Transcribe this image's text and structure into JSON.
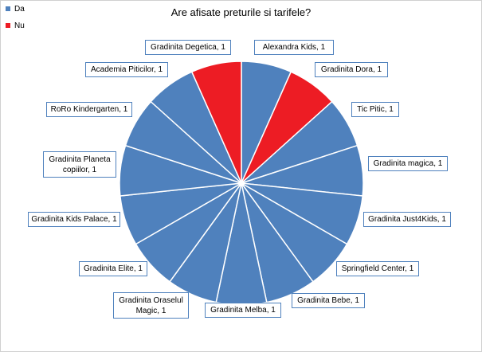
{
  "chart_data": {
    "type": "pie",
    "title": "Are afisate preturile si tarifele?",
    "legend": [
      {
        "name": "Da",
        "color": "#4f81bd"
      },
      {
        "name": "Nu",
        "color": "#ed1c24"
      }
    ],
    "legend_placement": "top-left",
    "slices": [
      {
        "label": "Alexandra Kids, 1",
        "value": 1,
        "series": "Da"
      },
      {
        "label": "Gradinita Dora, 1",
        "value": 1,
        "series": "Nu"
      },
      {
        "label": "Tic Pitic, 1",
        "value": 1,
        "series": "Da"
      },
      {
        "label": "Gradinita magica, 1",
        "value": 1,
        "series": "Da"
      },
      {
        "label": "Gradinita Just4Kids, 1",
        "value": 1,
        "series": "Da"
      },
      {
        "label": "Springfield Center, 1",
        "value": 1,
        "series": "Da"
      },
      {
        "label": "Gradinita Bebe, 1",
        "value": 1,
        "series": "Da"
      },
      {
        "label": "Gradinita Melba, 1",
        "value": 1,
        "series": "Da"
      },
      {
        "label": "Gradinita Oraselul Magic, 1",
        "value": 1,
        "series": "Da"
      },
      {
        "label": "Gradinita Elite, 1",
        "value": 1,
        "series": "Da"
      },
      {
        "label": "Gradinita Kids Palace, 1",
        "value": 1,
        "series": "Da"
      },
      {
        "label": "Gradinita Planeta copiilor, 1",
        "value": 1,
        "series": "Da"
      },
      {
        "label": "RoRo Kindergarten, 1",
        "value": 1,
        "series": "Da"
      },
      {
        "label": "Academia Piticilor, 1",
        "value": 1,
        "series": "Da"
      },
      {
        "label": "Gradinita Degetica, 1",
        "value": 1,
        "series": "Nu"
      }
    ]
  }
}
